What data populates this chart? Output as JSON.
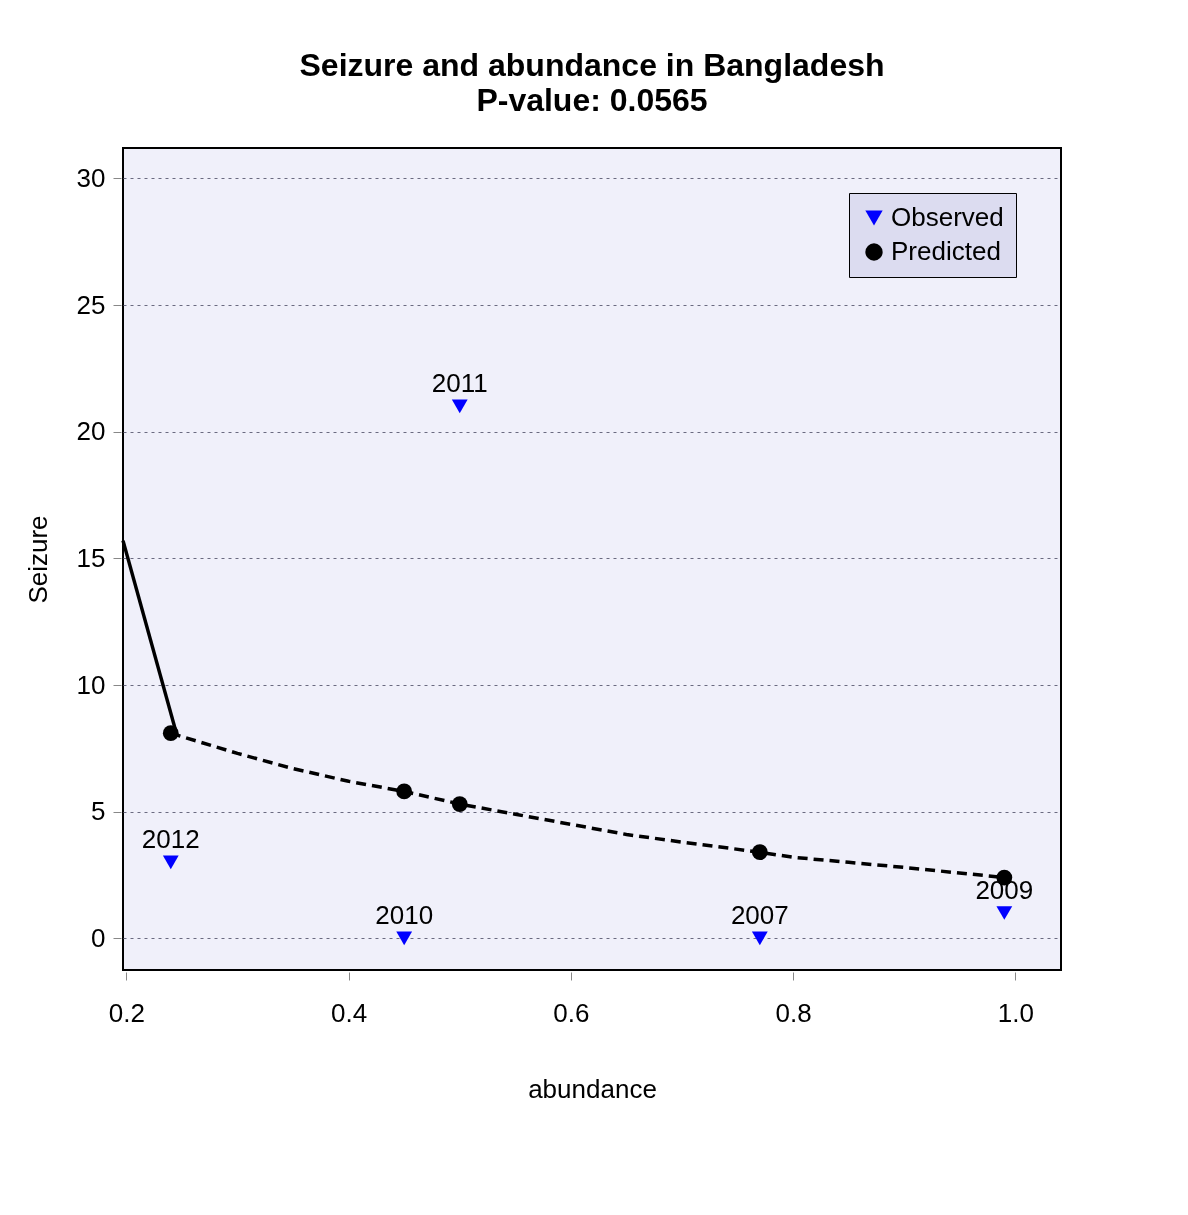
{
  "chart_data": {
    "type": "scatter",
    "title": "Seizure and abundance in Bangladesh",
    "subtitle": "P-value:  0.0565",
    "xlabel": "abundance",
    "ylabel": "Seizure",
    "xlim": [
      0.197,
      1.041
    ],
    "ylim": [
      -1.25,
      31.2
    ],
    "xticks": [
      0.2,
      0.4,
      0.6,
      0.8,
      {
        "value": 1,
        "label": "1.0"
      }
    ],
    "yticks": [
      0,
      5,
      10,
      15,
      20,
      25,
      30
    ],
    "grid": "y",
    "legend": "top right",
    "series": [
      {
        "name": "Observed",
        "color": "#0000ff",
        "marker": "triangle",
        "x": [
          0.24,
          0.45,
          0.5,
          0.77,
          0.99
        ],
        "values": [
          3,
          0,
          21,
          0,
          1
        ]
      },
      {
        "name": "Predicted",
        "color": "#000000",
        "marker": "circle",
        "x": [
          0.24,
          0.45,
          0.5,
          0.77,
          0.99
        ],
        "values": [
          8.1,
          5.8,
          5.3,
          3.4,
          2.4
        ]
      },
      {
        "color": "#000000",
        "type": "line",
        "marker": "none",
        "line_style": "dashed",
        "x": [
          0.24,
          0.3,
          0.35,
          0.4,
          0.45,
          0.5,
          0.55,
          0.6,
          0.65,
          0.7,
          0.77,
          0.8,
          0.85,
          0.9,
          0.99
        ],
        "values": [
          8.1,
          7.3,
          6.7,
          6.2,
          5.8,
          5.3,
          4.9,
          4.5,
          4.1,
          3.8,
          3.4,
          3.2,
          3.0,
          2.8,
          2.4
        ]
      },
      {
        "color": "#000000",
        "type": "line",
        "marker": "none",
        "line_style": "solid",
        "x": [
          0.197,
          0.245
        ],
        "values": [
          15.7,
          8.1
        ]
      }
    ],
    "annotations": [
      {
        "text": "2012",
        "x": 0.24,
        "y": 3
      },
      {
        "text": "2010",
        "x": 0.45,
        "y": 0
      },
      {
        "text": "2011",
        "x": 0.5,
        "y": 21
      },
      {
        "text": "2007",
        "x": 0.77,
        "y": 0
      },
      {
        "text": "2009",
        "x": 0.99,
        "y": 1
      }
    ]
  }
}
